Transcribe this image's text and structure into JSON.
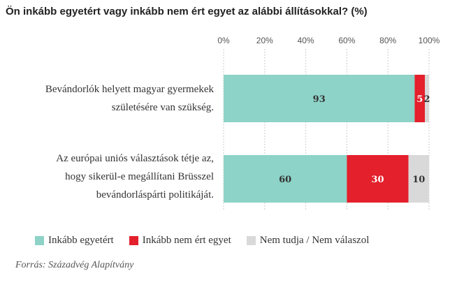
{
  "title": "Ön inkább egyetért vagy inkább nem ért egyet az alábbi állításokkal? (%)",
  "source": "Forrás: Századvég Alapítvány",
  "colors": {
    "agree": "#8dd3c7",
    "disagree": "#e3202c",
    "dontknow": "#d9d9d9",
    "grid": "#cccccc"
  },
  "chart_data": {
    "type": "bar",
    "orientation": "horizontal",
    "stacked": true,
    "categories": [
      [
        "Bevándorlók helyett magyar gyermekek",
        "születésére van szükség."
      ],
      [
        "Az európai uniós választások tétje az,",
        "hogy sikerül-e megállítani Brüsszel",
        "bevándorláspárti politikáját."
      ]
    ],
    "series": [
      {
        "name": "Inkább egyetért",
        "values": [
          93,
          60
        ]
      },
      {
        "name": "Inkább nem ért egyet",
        "values": [
          5,
          30
        ]
      },
      {
        "name": "Nem tudja / Nem válaszol",
        "values": [
          2,
          10
        ]
      }
    ],
    "xticks": [
      "0%",
      "20%",
      "40%",
      "60%",
      "80%",
      "100%"
    ],
    "xlim": [
      0,
      100
    ],
    "grid": true,
    "legend_position": "bottom"
  }
}
